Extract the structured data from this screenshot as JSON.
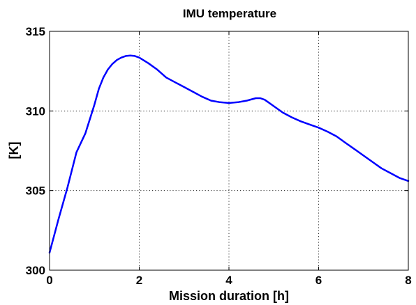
{
  "chart_data": {
    "type": "line",
    "title": "IMU temperature",
    "xlabel": "Mission duration [h]",
    "ylabel": "[K]",
    "xlim": [
      0,
      8
    ],
    "ylim": [
      300,
      315
    ],
    "xticks": [
      0,
      2,
      4,
      6,
      8
    ],
    "yticks": [
      300,
      305,
      310,
      315
    ],
    "grid": true,
    "series": [
      {
        "color": "#0000ff",
        "x": [
          0,
          0.2,
          0.4,
          0.6,
          0.8,
          1.0,
          1.1,
          1.2,
          1.3,
          1.4,
          1.5,
          1.6,
          1.7,
          1.8,
          1.9,
          2.0,
          2.2,
          2.4,
          2.6,
          2.8,
          3.0,
          3.2,
          3.4,
          3.6,
          3.8,
          4.0,
          4.2,
          4.4,
          4.6,
          4.7,
          4.8,
          5.0,
          5.2,
          5.4,
          5.6,
          5.8,
          6.0,
          6.2,
          6.4,
          6.6,
          6.8,
          7.0,
          7.2,
          7.4,
          7.6,
          7.8,
          8.0
        ],
        "y": [
          301.1,
          303.2,
          305.2,
          307.4,
          308.6,
          310.4,
          311.4,
          312.1,
          312.6,
          312.95,
          313.2,
          313.35,
          313.45,
          313.48,
          313.45,
          313.35,
          313.0,
          312.6,
          312.1,
          311.8,
          311.5,
          311.2,
          310.9,
          310.65,
          310.55,
          310.5,
          310.55,
          310.65,
          310.8,
          310.8,
          310.7,
          310.3,
          309.9,
          309.6,
          309.35,
          309.15,
          308.95,
          308.7,
          308.4,
          308.0,
          307.6,
          307.2,
          306.8,
          306.4,
          306.1,
          305.8,
          305.6
        ]
      }
    ]
  }
}
